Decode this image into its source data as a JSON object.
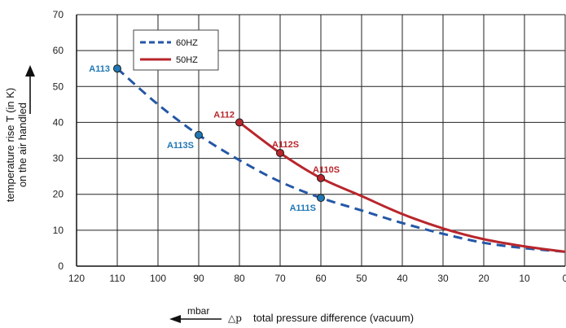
{
  "chart_data": {
    "type": "line",
    "xlim": [
      120,
      0
    ],
    "ylim": [
      0,
      70
    ],
    "x_ticks": [
      120,
      110,
      100,
      90,
      80,
      70,
      60,
      50,
      40,
      30,
      20,
      10,
      0
    ],
    "y_ticks": [
      0,
      10,
      20,
      30,
      40,
      50,
      60,
      70
    ],
    "x_tick_labels": [
      "120",
      "110",
      "100",
      "90",
      "80",
      "70",
      "60",
      "50",
      "40",
      "30",
      "20",
      "10",
      "0"
    ],
    "y_tick_labels": [
      "0",
      "10",
      "20",
      "30",
      "40",
      "50",
      "60",
      "70"
    ],
    "grid": true,
    "legend_position": "top-left",
    "xlabel": "total pressure difference (vacuum)",
    "xlabel_symbol": "△p",
    "xlabel_unit": "mbar",
    "ylabel_line1": "temperature rise T (in K)",
    "ylabel_line2": "on the air handled",
    "series": [
      {
        "name": "60HZ",
        "color": "#2457a6",
        "dash": true,
        "x": [
          110,
          100,
          90,
          80,
          70,
          60,
          50,
          40,
          30,
          20,
          10,
          0
        ],
        "y": [
          55,
          45,
          36.5,
          29.5,
          23.5,
          19,
          15.5,
          12,
          9,
          6.5,
          5,
          4
        ]
      },
      {
        "name": "50HZ",
        "color": "#b8262c",
        "dash": false,
        "x": [
          80,
          70,
          60,
          50,
          40,
          30,
          20,
          10,
          0
        ],
        "y": [
          40,
          31.5,
          24.5,
          19.5,
          14.5,
          10.5,
          7.5,
          5.5,
          4
        ]
      }
    ],
    "annotations": [
      {
        "label": "A113",
        "x": 110,
        "y": 55,
        "color": "#1f77b4",
        "pos": "left"
      },
      {
        "label": "A113S",
        "x": 90,
        "y": 36.5,
        "color": "#1f77b4",
        "pos": "below-left"
      },
      {
        "label": "A111S",
        "x": 60,
        "y": 19,
        "color": "#1f77b4",
        "pos": "below-left"
      },
      {
        "label": "A112",
        "x": 80,
        "y": 40,
        "color": "#b8262c",
        "pos": "above-left"
      },
      {
        "label": "A112S",
        "x": 70,
        "y": 31.5,
        "color": "#b8262c",
        "pos": "above-right"
      },
      {
        "label": "A110S",
        "x": 60,
        "y": 24.5,
        "color": "#b8262c",
        "pos": "above-right"
      }
    ]
  }
}
